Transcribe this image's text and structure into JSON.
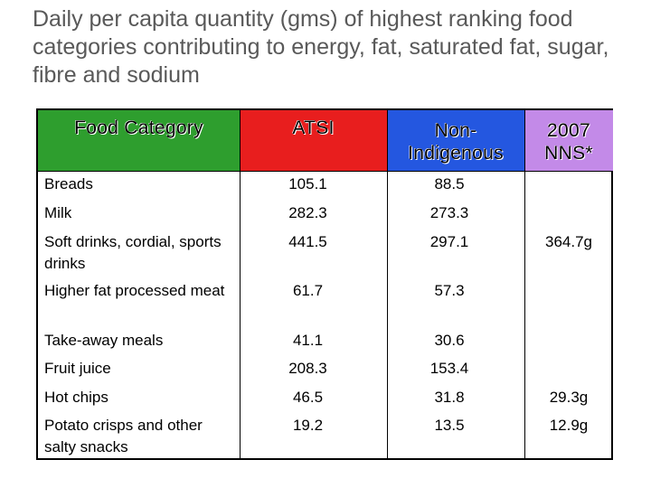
{
  "title": "Daily per capita quantity (gms) of highest ranking food categories contributing to energy, fat, saturated fat, sugar, fibre and sodium",
  "table": {
    "headers": {
      "food": "Food Category",
      "atsi": "ATSI",
      "non_indigenous": "Non-Indigenous",
      "nns": "2007 NNS*"
    },
    "rows": [
      {
        "name": "Breads",
        "atsi": "105.1",
        "non": "88.5",
        "nns": ""
      },
      {
        "name": "Milk",
        "atsi": "282.3",
        "non": "273.3",
        "nns": ""
      },
      {
        "name": "Soft drinks, cordial, sports drinks",
        "atsi": "441.5",
        "non": "297.1",
        "nns": "364.7g"
      },
      {
        "name": "Higher fat processed meat",
        "atsi": "61.7",
        "non": "57.3",
        "nns": ""
      },
      {
        "name": "Take-away meals",
        "atsi": "41.1",
        "non": "30.6",
        "nns": ""
      },
      {
        "name": "Fruit juice",
        "atsi": "208.3",
        "non": "153.4",
        "nns": ""
      },
      {
        "name": "Hot chips",
        "atsi": "46.5",
        "non": "31.8",
        "nns": "29.3g"
      },
      {
        "name": "Potato crisps and other salty snacks",
        "atsi": "19.2",
        "non": "13.5",
        "nns": "12.9g"
      }
    ]
  }
}
